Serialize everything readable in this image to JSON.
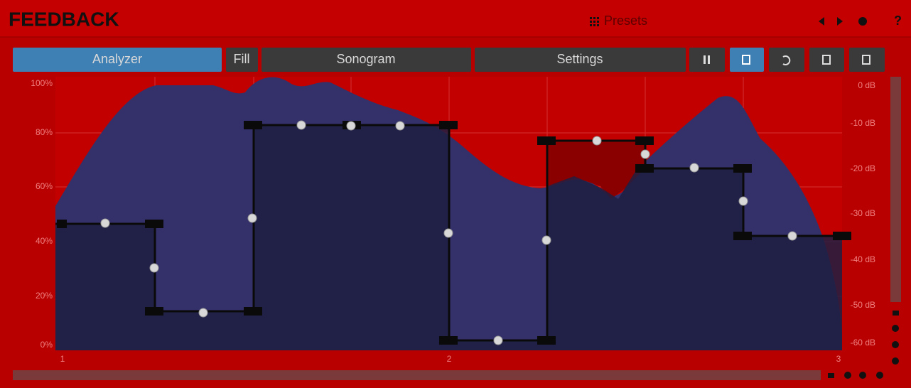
{
  "header": {
    "title": "FEEDBACK",
    "presets": "Presets",
    "help": "?"
  },
  "toolbar": {
    "buttons": [
      "Analyzer",
      "Fill",
      "Sonogram",
      "Settings"
    ]
  },
  "graph": {
    "left_axis": [
      "100%",
      "80%",
      "60%",
      "40%",
      "20%",
      "0%"
    ],
    "right_axis": [
      "0 dB",
      "-10 dB",
      "-20 dB",
      "-30 dB",
      "-40 dB",
      "-50 dB",
      "-60 dB"
    ],
    "x_axis": [
      "1",
      "2",
      "3"
    ]
  }
}
